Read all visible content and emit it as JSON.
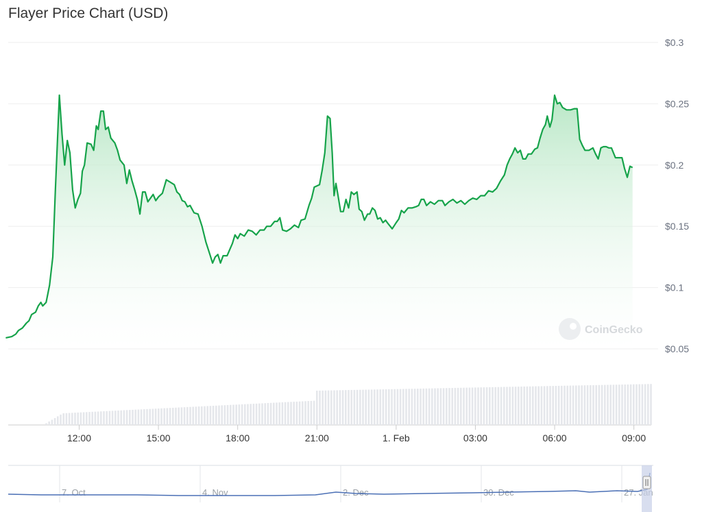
{
  "title": "Flayer Price Chart (USD)",
  "watermark": "CoinGecko",
  "colors": {
    "line": "#16a34a",
    "area_top": "#b5e6c3",
    "volume": "#e5e7eb",
    "navigator": "#4a6fb5",
    "grid": "#eeeeee"
  },
  "chart_data": {
    "type": "line",
    "title": "Flayer Price Chart (USD)",
    "xlabel": "",
    "ylabel": "",
    "y_ticks": [
      {
        "value": 0.3,
        "label": "$0.3"
      },
      {
        "value": 0.25,
        "label": "$0.25"
      },
      {
        "value": 0.2,
        "label": "$0.2"
      },
      {
        "value": 0.15,
        "label": "$0.15"
      },
      {
        "value": 0.1,
        "label": "$0.1"
      },
      {
        "value": 0.05,
        "label": "$0.05"
      }
    ],
    "ylim": [
      0.05,
      0.3
    ],
    "x_ticks": [
      {
        "h": 12,
        "label": "12:00"
      },
      {
        "h": 15,
        "label": "15:00"
      },
      {
        "h": 18,
        "label": "18:00"
      },
      {
        "h": 21,
        "label": "21:00"
      },
      {
        "h": 24,
        "label": "1. Feb"
      },
      {
        "h": 27,
        "label": "03:00"
      },
      {
        "h": 30,
        "label": "06:00"
      },
      {
        "h": 33,
        "label": "09:00"
      }
    ],
    "x_unit": "hours since 31 Jan 00:00",
    "xlim": [
      9.2,
      33.05
    ],
    "price_series": {
      "name": "Price",
      "points": [
        [
          9.22,
          0.059
        ],
        [
          9.45,
          0.06
        ],
        [
          9.6,
          0.062
        ],
        [
          9.7,
          0.065
        ],
        [
          9.85,
          0.067
        ],
        [
          10.0,
          0.071
        ],
        [
          10.1,
          0.073
        ],
        [
          10.2,
          0.078
        ],
        [
          10.35,
          0.08
        ],
        [
          10.45,
          0.085
        ],
        [
          10.55,
          0.088
        ],
        [
          10.62,
          0.085
        ],
        [
          10.75,
          0.088
        ],
        [
          10.88,
          0.102
        ],
        [
          11.0,
          0.125
        ],
        [
          11.1,
          0.18
        ],
        [
          11.25,
          0.257
        ],
        [
          11.35,
          0.225
        ],
        [
          11.45,
          0.2
        ],
        [
          11.55,
          0.22
        ],
        [
          11.65,
          0.21
        ],
        [
          11.75,
          0.18
        ],
        [
          11.85,
          0.165
        ],
        [
          11.95,
          0.172
        ],
        [
          12.05,
          0.177
        ],
        [
          12.12,
          0.195
        ],
        [
          12.2,
          0.2
        ],
        [
          12.3,
          0.218
        ],
        [
          12.45,
          0.217
        ],
        [
          12.55,
          0.212
        ],
        [
          12.65,
          0.232
        ],
        [
          12.72,
          0.229
        ],
        [
          12.82,
          0.244
        ],
        [
          12.92,
          0.244
        ],
        [
          13.0,
          0.229
        ],
        [
          13.1,
          0.231
        ],
        [
          13.2,
          0.222
        ],
        [
          13.35,
          0.218
        ],
        [
          13.45,
          0.212
        ],
        [
          13.55,
          0.204
        ],
        [
          13.7,
          0.2
        ],
        [
          13.8,
          0.185
        ],
        [
          13.9,
          0.196
        ],
        [
          14.0,
          0.187
        ],
        [
          14.1,
          0.18
        ],
        [
          14.2,
          0.172
        ],
        [
          14.3,
          0.16
        ],
        [
          14.4,
          0.178
        ],
        [
          14.5,
          0.178
        ],
        [
          14.6,
          0.17
        ],
        [
          14.7,
          0.173
        ],
        [
          14.8,
          0.176
        ],
        [
          14.9,
          0.171
        ],
        [
          15.0,
          0.174
        ],
        [
          15.15,
          0.177
        ],
        [
          15.3,
          0.188
        ],
        [
          15.45,
          0.186
        ],
        [
          15.6,
          0.184
        ],
        [
          15.7,
          0.178
        ],
        [
          15.8,
          0.176
        ],
        [
          15.9,
          0.171
        ],
        [
          16.0,
          0.17
        ],
        [
          16.1,
          0.166
        ],
        [
          16.2,
          0.167
        ],
        [
          16.35,
          0.161
        ],
        [
          16.5,
          0.16
        ],
        [
          16.65,
          0.15
        ],
        [
          16.8,
          0.137
        ],
        [
          16.95,
          0.127
        ],
        [
          17.05,
          0.12
        ],
        [
          17.15,
          0.125
        ],
        [
          17.25,
          0.127
        ],
        [
          17.35,
          0.12
        ],
        [
          17.45,
          0.126
        ],
        [
          17.6,
          0.126
        ],
        [
          17.7,
          0.131
        ],
        [
          17.8,
          0.136
        ],
        [
          17.9,
          0.143
        ],
        [
          18.0,
          0.14
        ],
        [
          18.1,
          0.144
        ],
        [
          18.25,
          0.142
        ],
        [
          18.4,
          0.147
        ],
        [
          18.55,
          0.146
        ],
        [
          18.7,
          0.143
        ],
        [
          18.85,
          0.147
        ],
        [
          19.0,
          0.147
        ],
        [
          19.1,
          0.15
        ],
        [
          19.25,
          0.15
        ],
        [
          19.4,
          0.154
        ],
        [
          19.5,
          0.154
        ],
        [
          19.6,
          0.157
        ],
        [
          19.7,
          0.147
        ],
        [
          19.85,
          0.146
        ],
        [
          20.0,
          0.148
        ],
        [
          20.15,
          0.151
        ],
        [
          20.3,
          0.149
        ],
        [
          20.4,
          0.155
        ],
        [
          20.55,
          0.156
        ],
        [
          20.7,
          0.167
        ],
        [
          20.8,
          0.173
        ],
        [
          20.9,
          0.182
        ],
        [
          21.0,
          0.183
        ],
        [
          21.1,
          0.184
        ],
        [
          21.2,
          0.196
        ],
        [
          21.3,
          0.21
        ],
        [
          21.4,
          0.24
        ],
        [
          21.5,
          0.238
        ],
        [
          21.58,
          0.21
        ],
        [
          21.65,
          0.175
        ],
        [
          21.72,
          0.185
        ],
        [
          21.8,
          0.175
        ],
        [
          21.9,
          0.162
        ],
        [
          22.0,
          0.162
        ],
        [
          22.1,
          0.172
        ],
        [
          22.2,
          0.165
        ],
        [
          22.3,
          0.178
        ],
        [
          22.4,
          0.176
        ],
        [
          22.52,
          0.178
        ],
        [
          22.6,
          0.164
        ],
        [
          22.7,
          0.162
        ],
        [
          22.8,
          0.155
        ],
        [
          22.92,
          0.16
        ],
        [
          23.0,
          0.16
        ],
        [
          23.1,
          0.165
        ],
        [
          23.2,
          0.163
        ],
        [
          23.3,
          0.156
        ],
        [
          23.4,
          0.157
        ],
        [
          23.5,
          0.153
        ],
        [
          23.6,
          0.155
        ],
        [
          23.7,
          0.152
        ],
        [
          23.85,
          0.148
        ],
        [
          24.0,
          0.153
        ],
        [
          24.1,
          0.156
        ],
        [
          24.2,
          0.163
        ],
        [
          24.3,
          0.161
        ],
        [
          24.45,
          0.165
        ],
        [
          24.6,
          0.165
        ],
        [
          24.75,
          0.166
        ],
        [
          24.85,
          0.167
        ],
        [
          24.95,
          0.172
        ],
        [
          25.05,
          0.172
        ],
        [
          25.15,
          0.167
        ],
        [
          25.3,
          0.17
        ],
        [
          25.45,
          0.168
        ],
        [
          25.6,
          0.171
        ],
        [
          25.75,
          0.171
        ],
        [
          25.85,
          0.167
        ],
        [
          26.0,
          0.17
        ],
        [
          26.15,
          0.172
        ],
        [
          26.3,
          0.169
        ],
        [
          26.45,
          0.171
        ],
        [
          26.6,
          0.168
        ],
        [
          26.75,
          0.171
        ],
        [
          26.9,
          0.173
        ],
        [
          27.05,
          0.172
        ],
        [
          27.2,
          0.175
        ],
        [
          27.35,
          0.175
        ],
        [
          27.5,
          0.179
        ],
        [
          27.65,
          0.178
        ],
        [
          27.8,
          0.181
        ],
        [
          27.95,
          0.187
        ],
        [
          28.1,
          0.192
        ],
        [
          28.2,
          0.2
        ],
        [
          28.3,
          0.205
        ],
        [
          28.4,
          0.209
        ],
        [
          28.5,
          0.214
        ],
        [
          28.6,
          0.21
        ],
        [
          28.7,
          0.212
        ],
        [
          28.8,
          0.205
        ],
        [
          28.9,
          0.205
        ],
        [
          29.0,
          0.209
        ],
        [
          29.12,
          0.209
        ],
        [
          29.25,
          0.213
        ],
        [
          29.35,
          0.214
        ],
        [
          29.45,
          0.222
        ],
        [
          29.55,
          0.229
        ],
        [
          29.65,
          0.233
        ],
        [
          29.72,
          0.24
        ],
        [
          29.82,
          0.231
        ],
        [
          29.9,
          0.237
        ],
        [
          30.0,
          0.257
        ],
        [
          30.1,
          0.25
        ],
        [
          30.2,
          0.251
        ],
        [
          30.3,
          0.247
        ],
        [
          30.45,
          0.245
        ],
        [
          30.6,
          0.245
        ],
        [
          30.75,
          0.246
        ],
        [
          30.85,
          0.246
        ],
        [
          30.95,
          0.221
        ],
        [
          31.05,
          0.216
        ],
        [
          31.15,
          0.212
        ],
        [
          31.3,
          0.212
        ],
        [
          31.45,
          0.214
        ],
        [
          31.55,
          0.209
        ],
        [
          31.65,
          0.205
        ],
        [
          31.75,
          0.214
        ],
        [
          31.85,
          0.215
        ],
        [
          31.95,
          0.215
        ],
        [
          32.05,
          0.214
        ],
        [
          32.15,
          0.214
        ],
        [
          32.3,
          0.206
        ],
        [
          32.4,
          0.206
        ],
        [
          32.55,
          0.206
        ],
        [
          32.65,
          0.197
        ],
        [
          32.75,
          0.19
        ],
        [
          32.85,
          0.199
        ],
        [
          32.95,
          0.198
        ]
      ]
    },
    "navigator": {
      "x_ticks": [
        "7. Oct",
        "4. Nov",
        "2. Dec",
        "30. Dec",
        "27. Jan"
      ]
    }
  }
}
